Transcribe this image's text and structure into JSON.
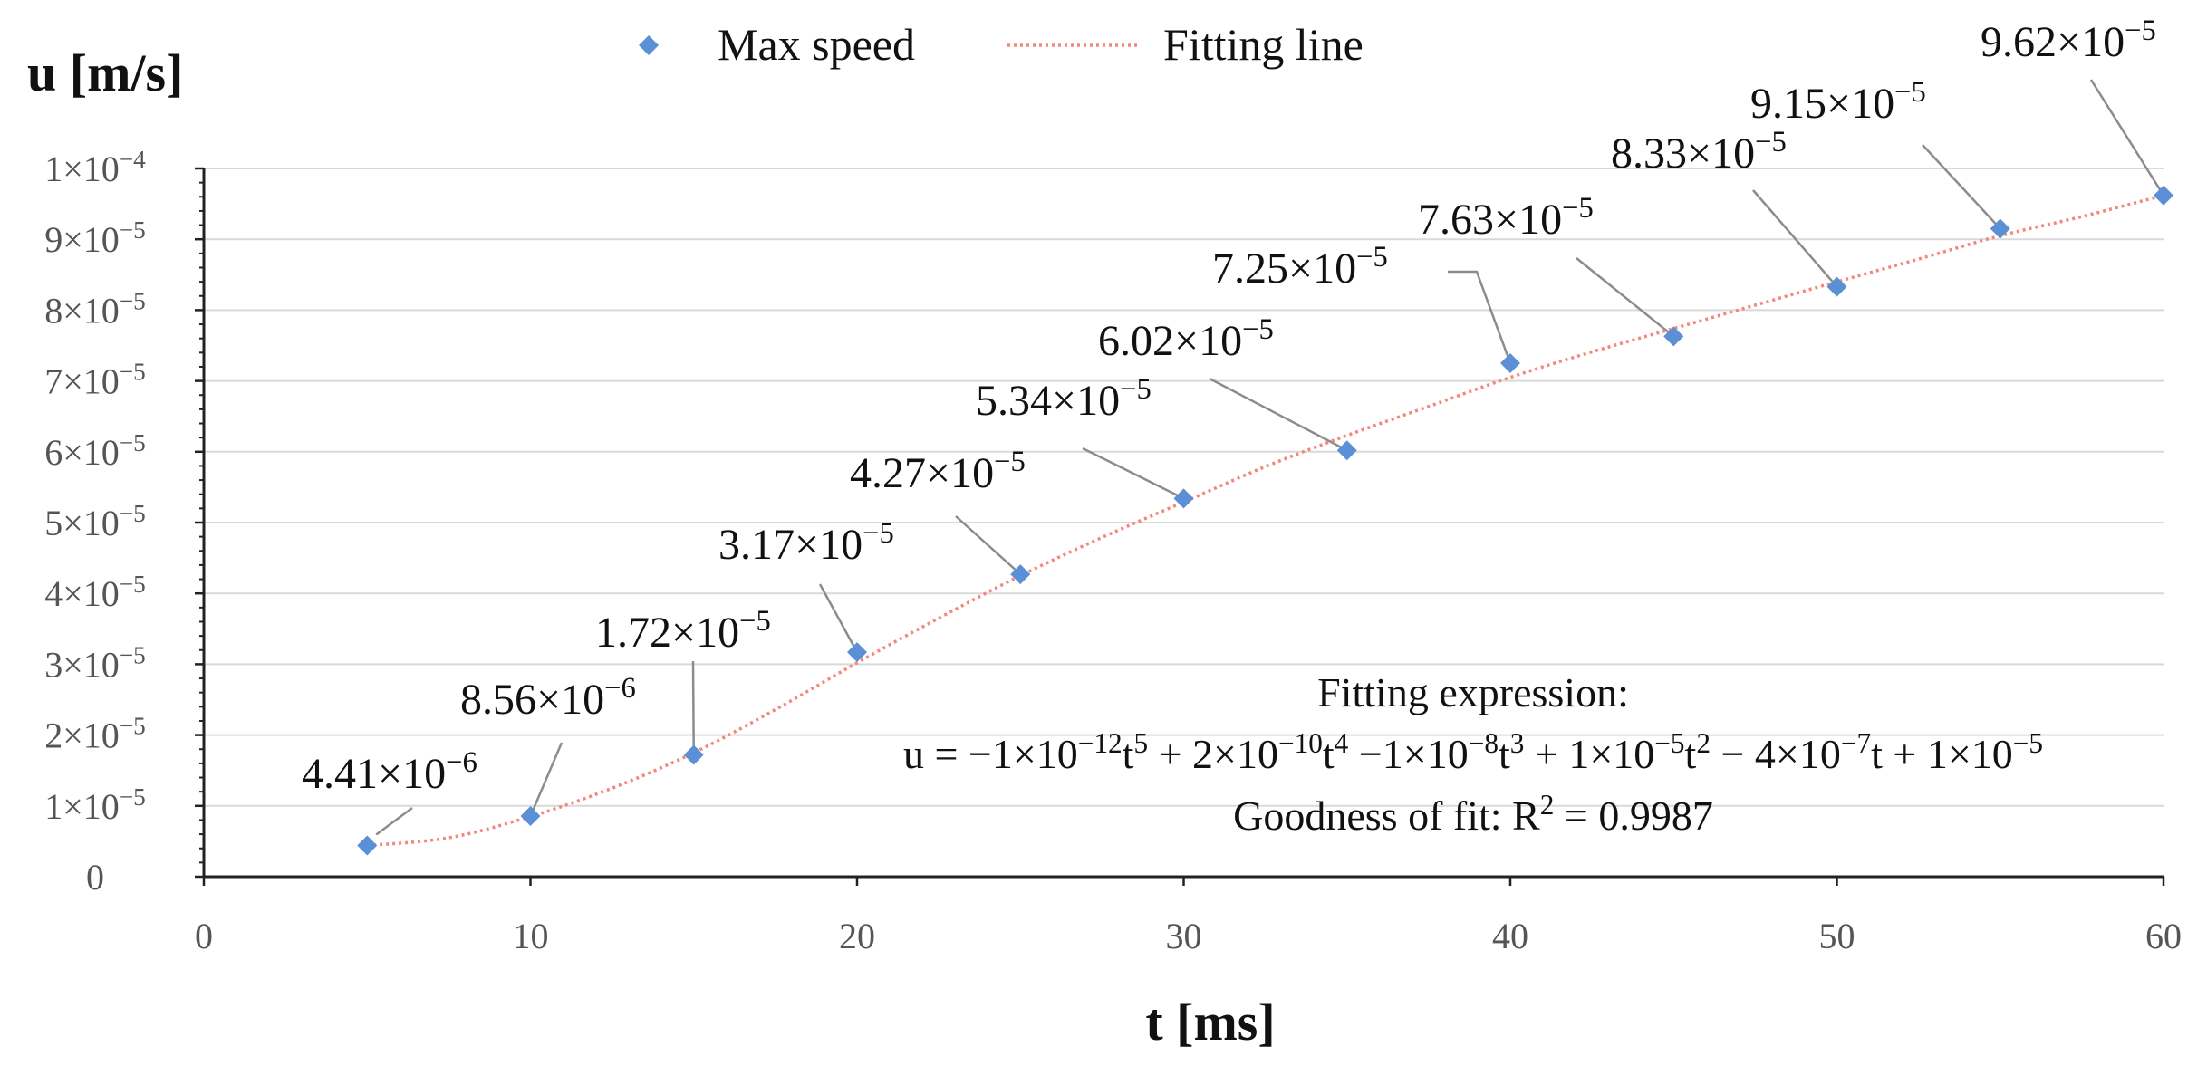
{
  "chart_data": {
    "type": "scatter",
    "ylabel": "u [m/s]",
    "xlabel": "t [ms]",
    "xlim": [
      0,
      60
    ],
    "ylim": [
      0,
      0.0001
    ],
    "x_ticks": [
      {
        "v": 0,
        "label": "0"
      },
      {
        "v": 10,
        "label": "10"
      },
      {
        "v": 20,
        "label": "20"
      },
      {
        "v": 30,
        "label": "30"
      },
      {
        "v": 40,
        "label": "40"
      },
      {
        "v": 50,
        "label": "50"
      },
      {
        "v": 60,
        "label": "60"
      }
    ],
    "y_ticks": [
      {
        "v": 0,
        "m": "0",
        "e": ""
      },
      {
        "v": 1e-05,
        "m": "1×10",
        "e": "−5"
      },
      {
        "v": 2e-05,
        "m": "2×10",
        "e": "−5"
      },
      {
        "v": 3e-05,
        "m": "3×10",
        "e": "−5"
      },
      {
        "v": 4e-05,
        "m": "4×10",
        "e": "−5"
      },
      {
        "v": 5e-05,
        "m": "5×10",
        "e": "−5"
      },
      {
        "v": 6e-05,
        "m": "6×10",
        "e": "−5"
      },
      {
        "v": 7e-05,
        "m": "7×10",
        "e": "−5"
      },
      {
        "v": 8e-05,
        "m": "8×10",
        "e": "−5"
      },
      {
        "v": 9e-05,
        "m": "9×10",
        "e": "−5"
      },
      {
        "v": 0.0001,
        "m": "1×10",
        "e": "−4"
      }
    ],
    "grid": true,
    "legend": {
      "position": "top-center",
      "entries": [
        {
          "name": "Max speed",
          "kind": "marker"
        },
        {
          "name": "Fitting line",
          "kind": "dotted-line"
        }
      ]
    },
    "series": [
      {
        "name": "Max speed",
        "color": "#5b8fd6",
        "points": [
          {
            "x": 5,
            "y": 4.41e-06,
            "m": "4.41×10",
            "e": "−6"
          },
          {
            "x": 10,
            "y": 8.56e-06,
            "m": "8.56×10",
            "e": "−6"
          },
          {
            "x": 15,
            "y": 1.72e-05,
            "m": "1.72×10",
            "e": "−5"
          },
          {
            "x": 20,
            "y": 3.17e-05,
            "m": "3.17×10",
            "e": "−5"
          },
          {
            "x": 25,
            "y": 4.27e-05,
            "m": "4.27×10",
            "e": "−5"
          },
          {
            "x": 30,
            "y": 5.34e-05,
            "m": "5.34×10",
            "e": "−5"
          },
          {
            "x": 35,
            "y": 6.02e-05,
            "m": "6.02×10",
            "e": "−5"
          },
          {
            "x": 40,
            "y": 7.25e-05,
            "m": "7.25×10",
            "e": "−5"
          },
          {
            "x": 45,
            "y": 7.63e-05,
            "m": "7.63×10",
            "e": "−5"
          },
          {
            "x": 50,
            "y": 8.33e-05,
            "m": "8.33×10",
            "e": "−5"
          },
          {
            "x": 55,
            "y": 9.15e-05,
            "m": "9.15×10",
            "e": "−5"
          },
          {
            "x": 60,
            "y": 9.62e-05,
            "m": "9.62×10",
            "e": "−5"
          }
        ]
      },
      {
        "name": "Fitting line",
        "color": "#f4867a",
        "points": [
          {
            "x": 5,
            "y": 4.4e-06
          },
          {
            "x": 7.5,
            "y": 5.5e-06
          },
          {
            "x": 10,
            "y": 8.5e-06
          },
          {
            "x": 12.5,
            "y": 1.25e-05
          },
          {
            "x": 15,
            "y": 1.75e-05
          },
          {
            "x": 17.5,
            "y": 2.36e-05
          },
          {
            "x": 20,
            "y": 3.02e-05
          },
          {
            "x": 22.5,
            "y": 3.65e-05
          },
          {
            "x": 25,
            "y": 4.25e-05
          },
          {
            "x": 27.5,
            "y": 4.79e-05
          },
          {
            "x": 30,
            "y": 5.29e-05
          },
          {
            "x": 32.5,
            "y": 5.79e-05
          },
          {
            "x": 35,
            "y": 6.23e-05
          },
          {
            "x": 37.5,
            "y": 6.64e-05
          },
          {
            "x": 40,
            "y": 7.05e-05
          },
          {
            "x": 42.5,
            "y": 7.41e-05
          },
          {
            "x": 45,
            "y": 7.74e-05
          },
          {
            "x": 47.5,
            "y": 8.07e-05
          },
          {
            "x": 50,
            "y": 8.4e-05
          },
          {
            "x": 52.5,
            "y": 8.72e-05
          },
          {
            "x": 55,
            "y": 9.05e-05
          },
          {
            "x": 57.5,
            "y": 9.32e-05
          },
          {
            "x": 60,
            "y": 9.62e-05
          }
        ]
      }
    ],
    "annotation": {
      "heading": "Fitting expression:",
      "equation": [
        {
          "t": "u = −1×10"
        },
        {
          "t": "−12",
          "sup": true
        },
        {
          "t": "t"
        },
        {
          "t": "5",
          "sup": true
        },
        {
          "t": " + 2×10"
        },
        {
          "t": "−10",
          "sup": true
        },
        {
          "t": "t"
        },
        {
          "t": "4",
          "sup": true
        },
        {
          "t": " −1×10"
        },
        {
          "t": "−8",
          "sup": true
        },
        {
          "t": "t"
        },
        {
          "t": "3",
          "sup": true
        },
        {
          "t": " + 1×10"
        },
        {
          "t": "−5",
          "sup": true
        },
        {
          "t": "t"
        },
        {
          "t": "2",
          "sup": true
        },
        {
          "t": " − 4×10"
        },
        {
          "t": "−7",
          "sup": true
        },
        {
          "t": "t + 1×10"
        },
        {
          "t": "−5",
          "sup": true
        }
      ],
      "fit_prefix": "Goodness of fit: R",
      "fit_sup": "2",
      "fit_suffix": " = 0.9987"
    }
  }
}
